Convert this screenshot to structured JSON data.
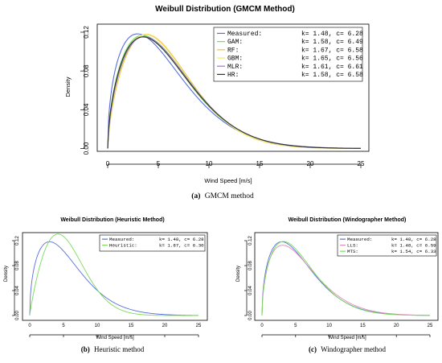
{
  "captions": {
    "a_letter": "(a)",
    "a_text": "GMCM method",
    "b_letter": "(b)",
    "b_text": "Heuristic method",
    "c_letter": "(c)",
    "c_text": "Windographer method"
  },
  "colors": {
    "Measured": "#5a6ee0",
    "GAM": "#77dd55",
    "RF": "#f0c040",
    "GBM": "#eeee66",
    "MLR": "#9a7fbf",
    "HR": "#333333",
    "Heuristic": "#77dd55",
    "LLS": "#e08ab8",
    "MTS": "#77dd55"
  },
  "chart_data": [
    {
      "type": "line",
      "title": "Weibull Distribution (GMCM Method)",
      "xlabel": "Wind Speed [m/s]",
      "ylabel": "Density",
      "xlim": [
        0,
        25
      ],
      "ylim": [
        0,
        0.13
      ],
      "xticks": [
        "0",
        "5",
        "10",
        "15",
        "20",
        "25"
      ],
      "yticks": [
        "0.00",
        "0.04",
        "0.08",
        "0.12"
      ],
      "legend_position": "top-right",
      "series": [
        {
          "name": "Measured:",
          "label": "k= 1.48, c= 6.28",
          "k": 1.48,
          "c": 6.28
        },
        {
          "name": "GAM:",
          "label": "k= 1.58, c= 6.49",
          "k": 1.58,
          "c": 6.49
        },
        {
          "name": "RF:",
          "label": "k= 1.67, c= 6.58",
          "k": 1.67,
          "c": 6.58
        },
        {
          "name": "GBM:",
          "label": "k= 1.65, c= 6.56",
          "k": 1.65,
          "c": 6.56
        },
        {
          "name": "MLR:",
          "label": "k= 1.61, c= 6.61",
          "k": 1.61,
          "c": 6.61
        },
        {
          "name": "HR:",
          "label": "k= 1.58, c= 6.58",
          "k": 1.58,
          "c": 6.58
        }
      ]
    },
    {
      "type": "line",
      "title": "Weibull Distribution (Heuristic Method)",
      "xlabel": "Wind Speed [m/s]",
      "ylabel": "Density",
      "xlim": [
        0,
        25
      ],
      "ylim": [
        0,
        0.13
      ],
      "xticks": [
        "0",
        "5",
        "10",
        "15",
        "20",
        "25"
      ],
      "yticks": [
        "0.00",
        "0.04",
        "0.08",
        "0.12"
      ],
      "legend_position": "top-right",
      "series": [
        {
          "name": "Measured:",
          "label": "k= 1.48, c= 6.28",
          "k": 1.48,
          "c": 6.28
        },
        {
          "name": "Heuristic:",
          "label": "k= 1.87, c= 6.30",
          "k": 1.87,
          "c": 6.3
        }
      ]
    },
    {
      "type": "line",
      "title": "Weibull Distribution (Windographer Method)",
      "xlabel": "Wind Speed [m/s]",
      "ylabel": "Density",
      "xlim": [
        0,
        25
      ],
      "ylim": [
        0,
        0.13
      ],
      "xticks": [
        "0",
        "5",
        "10",
        "15",
        "20",
        "25"
      ],
      "yticks": [
        "0.00",
        "0.04",
        "0.08",
        "0.12"
      ],
      "legend_position": "top-right",
      "series": [
        {
          "name": "Measured:",
          "label": "k= 1.48, c= 6.28",
          "k": 1.48,
          "c": 6.28
        },
        {
          "name": "LLS:",
          "label": "k= 1.48, c= 6.59",
          "k": 1.48,
          "c": 6.59
        },
        {
          "name": "MTS:",
          "label": "k= 1.54, c= 6.33",
          "k": 1.54,
          "c": 6.33
        }
      ]
    }
  ]
}
